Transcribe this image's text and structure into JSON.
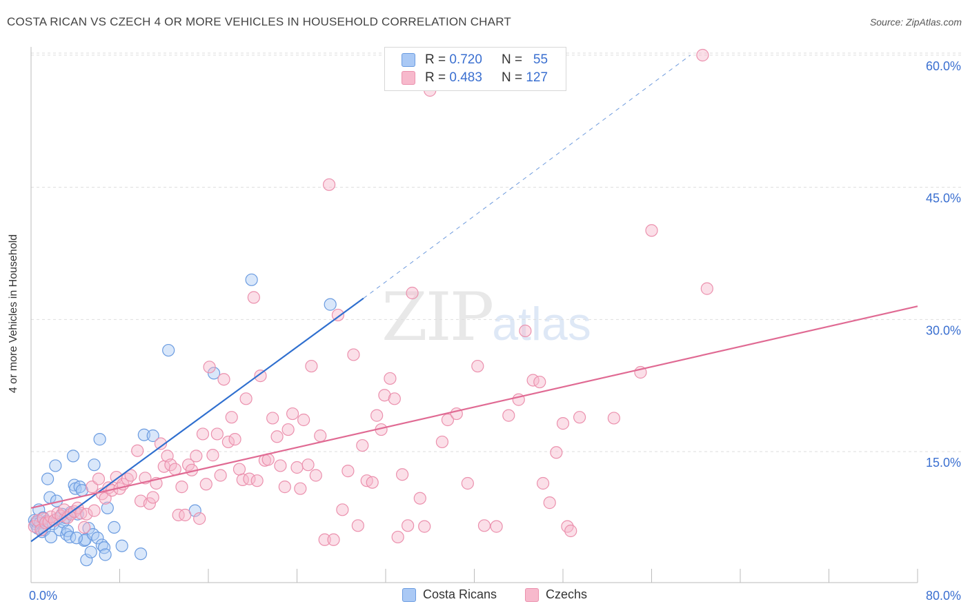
{
  "header": {
    "title": "COSTA RICAN VS CZECH 4 OR MORE VEHICLES IN HOUSEHOLD CORRELATION CHART",
    "source": "Source: ZipAtlas.com"
  },
  "watermark": {
    "zip": "ZIP",
    "atlas": "atlas"
  },
  "legend": {
    "rows": [
      {
        "r_label": "R = ",
        "r_value": "0.720",
        "n_label": "N = ",
        "n_value": "55",
        "color": "#aac9f5"
      },
      {
        "r_label": "R = ",
        "r_value": "0.483",
        "n_label": "N = ",
        "n_value": "127",
        "color": "#f7b9cc"
      }
    ]
  },
  "chart_data": {
    "type": "scatter",
    "title": "COSTA RICAN VS CZECH 4 OR MORE VEHICLES IN HOUSEHOLD CORRELATION CHART",
    "xlabel": "",
    "ylabel": "4 or more Vehicles in Household",
    "xlim": [
      0,
      80
    ],
    "ylim": [
      0,
      63
    ],
    "x_tick_labels": [
      "0.0%",
      "80.0%"
    ],
    "y_ticks": [
      15,
      30,
      45,
      60
    ],
    "y_tick_labels": [
      "15.0%",
      "30.0%",
      "45.0%",
      "60.0%"
    ],
    "grid": true,
    "legend_position": "top-center",
    "series": [
      {
        "name": "Costa Ricans",
        "color": "#6a9be0",
        "fill": "#aac9f5",
        "line_color": "#2f6fcf",
        "trend": {
          "x": [
            0,
            30
          ],
          "y": [
            4.8,
            32.4
          ],
          "dashed_extension_to": [
            59.5,
            60
          ]
        },
        "points": [
          [
            0.3,
            7.2
          ],
          [
            0.4,
            6.8
          ],
          [
            0.5,
            7.0
          ],
          [
            0.6,
            6.3
          ],
          [
            0.7,
            8.4
          ],
          [
            0.8,
            6.9
          ],
          [
            1.0,
            5.9
          ],
          [
            1.1,
            7.5
          ],
          [
            1.2,
            6.1
          ],
          [
            1.4,
            7.1
          ],
          [
            1.5,
            11.9
          ],
          [
            1.7,
            9.8
          ],
          [
            1.8,
            5.3
          ],
          [
            2.0,
            6.8
          ],
          [
            2.2,
            13.4
          ],
          [
            2.3,
            9.4
          ],
          [
            2.4,
            7.4
          ],
          [
            2.6,
            6.1
          ],
          [
            2.8,
            7.9
          ],
          [
            2.9,
            7.0
          ],
          [
            3.1,
            7.5
          ],
          [
            3.2,
            5.6
          ],
          [
            3.3,
            6.0
          ],
          [
            3.5,
            5.3
          ],
          [
            3.6,
            8.1
          ],
          [
            3.8,
            14.5
          ],
          [
            3.9,
            11.2
          ],
          [
            4.0,
            10.8
          ],
          [
            4.2,
            7.9
          ],
          [
            4.4,
            11.0
          ],
          [
            4.6,
            10.6
          ],
          [
            4.8,
            4.9
          ],
          [
            4.9,
            5.0
          ],
          [
            5.0,
            2.7
          ],
          [
            5.2,
            6.3
          ],
          [
            5.4,
            3.6
          ],
          [
            5.6,
            5.6
          ],
          [
            5.7,
            13.5
          ],
          [
            6.0,
            5.2
          ],
          [
            6.2,
            16.4
          ],
          [
            6.4,
            4.4
          ],
          [
            6.6,
            4.1
          ],
          [
            6.7,
            3.3
          ],
          [
            6.9,
            8.6
          ],
          [
            7.5,
            6.4
          ],
          [
            8.2,
            4.3
          ],
          [
            9.9,
            3.4
          ],
          [
            10.2,
            16.9
          ],
          [
            11.0,
            16.8
          ],
          [
            12.4,
            26.5
          ],
          [
            14.8,
            8.3
          ],
          [
            16.5,
            23.9
          ],
          [
            19.9,
            34.5
          ],
          [
            27.0,
            31.7
          ],
          [
            4.1,
            5.2
          ]
        ]
      },
      {
        "name": "Czechs",
        "color": "#eb90ad",
        "fill": "#f7b9cc",
        "line_color": "#e06a93",
        "trend": {
          "x": [
            0,
            80
          ],
          "y": [
            8.6,
            31.5
          ]
        },
        "points": [
          [
            0.3,
            6.5
          ],
          [
            0.6,
            7.2
          ],
          [
            0.9,
            6.1
          ],
          [
            1.1,
            7.4
          ],
          [
            1.3,
            6.9
          ],
          [
            1.6,
            7.0
          ],
          [
            1.8,
            7.6
          ],
          [
            2.1,
            7.2
          ],
          [
            2.4,
            8.0
          ],
          [
            2.7,
            7.7
          ],
          [
            3.0,
            8.4
          ],
          [
            3.3,
            7.5
          ],
          [
            3.6,
            7.9
          ],
          [
            3.9,
            8.2
          ],
          [
            4.2,
            8.6
          ],
          [
            4.5,
            8.0
          ],
          [
            4.8,
            6.4
          ],
          [
            5.0,
            7.9
          ],
          [
            5.5,
            11.0
          ],
          [
            5.7,
            8.3
          ],
          [
            6.1,
            11.9
          ],
          [
            6.4,
            10.2
          ],
          [
            6.7,
            9.7
          ],
          [
            7.0,
            10.9
          ],
          [
            7.3,
            10.6
          ],
          [
            7.7,
            12.1
          ],
          [
            8.0,
            10.8
          ],
          [
            8.3,
            11.3
          ],
          [
            8.7,
            11.9
          ],
          [
            9.0,
            12.3
          ],
          [
            9.6,
            15.1
          ],
          [
            9.9,
            9.4
          ],
          [
            10.3,
            12.0
          ],
          [
            10.7,
            9.1
          ],
          [
            11.0,
            9.8
          ],
          [
            11.3,
            11.4
          ],
          [
            11.7,
            15.9
          ],
          [
            12.0,
            13.3
          ],
          [
            12.3,
            14.5
          ],
          [
            12.6,
            13.5
          ],
          [
            13.0,
            13.0
          ],
          [
            13.3,
            7.8
          ],
          [
            13.6,
            11.0
          ],
          [
            13.9,
            7.8
          ],
          [
            14.2,
            13.5
          ],
          [
            14.5,
            12.9
          ],
          [
            14.9,
            14.5
          ],
          [
            15.2,
            7.4
          ],
          [
            15.5,
            17.0
          ],
          [
            15.8,
            11.3
          ],
          [
            16.1,
            24.6
          ],
          [
            16.4,
            14.6
          ],
          [
            16.8,
            17.0
          ],
          [
            17.1,
            12.3
          ],
          [
            17.4,
            23.2
          ],
          [
            17.8,
            16.1
          ],
          [
            18.1,
            18.9
          ],
          [
            18.4,
            16.4
          ],
          [
            18.8,
            13.0
          ],
          [
            19.1,
            11.8
          ],
          [
            19.4,
            21.0
          ],
          [
            19.7,
            11.9
          ],
          [
            20.1,
            32.5
          ],
          [
            20.4,
            11.7
          ],
          [
            20.7,
            23.6
          ],
          [
            21.1,
            14.0
          ],
          [
            21.4,
            14.1
          ],
          [
            21.8,
            18.8
          ],
          [
            22.2,
            16.7
          ],
          [
            22.5,
            13.4
          ],
          [
            22.9,
            11.0
          ],
          [
            23.2,
            17.5
          ],
          [
            23.6,
            19.3
          ],
          [
            24.0,
            13.2
          ],
          [
            24.3,
            10.8
          ],
          [
            24.6,
            18.6
          ],
          [
            25.0,
            13.5
          ],
          [
            25.3,
            24.7
          ],
          [
            25.7,
            12.3
          ],
          [
            26.1,
            16.8
          ],
          [
            26.5,
            5.0
          ],
          [
            26.9,
            45.3
          ],
          [
            27.3,
            5.0
          ],
          [
            27.7,
            30.5
          ],
          [
            28.1,
            8.4
          ],
          [
            28.6,
            12.8
          ],
          [
            29.1,
            26.0
          ],
          [
            29.5,
            6.6
          ],
          [
            29.9,
            15.7
          ],
          [
            30.3,
            11.7
          ],
          [
            30.8,
            11.5
          ],
          [
            31.2,
            19.1
          ],
          [
            31.6,
            17.5
          ],
          [
            31.9,
            21.4
          ],
          [
            32.4,
            23.3
          ],
          [
            32.8,
            21.0
          ],
          [
            33.1,
            5.3
          ],
          [
            33.5,
            12.4
          ],
          [
            34.0,
            6.6
          ],
          [
            34.4,
            33.0
          ],
          [
            35.1,
            9.7
          ],
          [
            35.5,
            6.5
          ],
          [
            36.0,
            56.0
          ],
          [
            37.1,
            16.1
          ],
          [
            37.6,
            18.6
          ],
          [
            38.4,
            19.3
          ],
          [
            39.4,
            11.4
          ],
          [
            40.3,
            24.7
          ],
          [
            40.9,
            6.6
          ],
          [
            42.0,
            6.5
          ],
          [
            43.1,
            19.1
          ],
          [
            44.0,
            20.9
          ],
          [
            44.6,
            28.7
          ],
          [
            45.3,
            23.1
          ],
          [
            45.9,
            22.9
          ],
          [
            46.2,
            11.4
          ],
          [
            46.8,
            9.2
          ],
          [
            47.4,
            14.9
          ],
          [
            48.0,
            18.2
          ],
          [
            48.4,
            6.5
          ],
          [
            48.7,
            6.0
          ],
          [
            49.5,
            18.9
          ],
          [
            52.6,
            18.8
          ],
          [
            55.0,
            24.0
          ],
          [
            56.0,
            40.1
          ],
          [
            61.0,
            33.5
          ],
          [
            60.6,
            60.0
          ]
        ]
      }
    ]
  },
  "bottom_legend": {
    "items": [
      {
        "label": "Costa Ricans",
        "color": "#aac9f5"
      },
      {
        "label": "Czechs",
        "color": "#f7b9cc"
      }
    ]
  },
  "axes": {
    "y_tick_labels": [
      "15.0%",
      "30.0%",
      "45.0%",
      "60.0%"
    ],
    "x_left_label": "0.0%",
    "x_right_label": "80.0%",
    "ylabel": "4 or more Vehicles in Household"
  }
}
